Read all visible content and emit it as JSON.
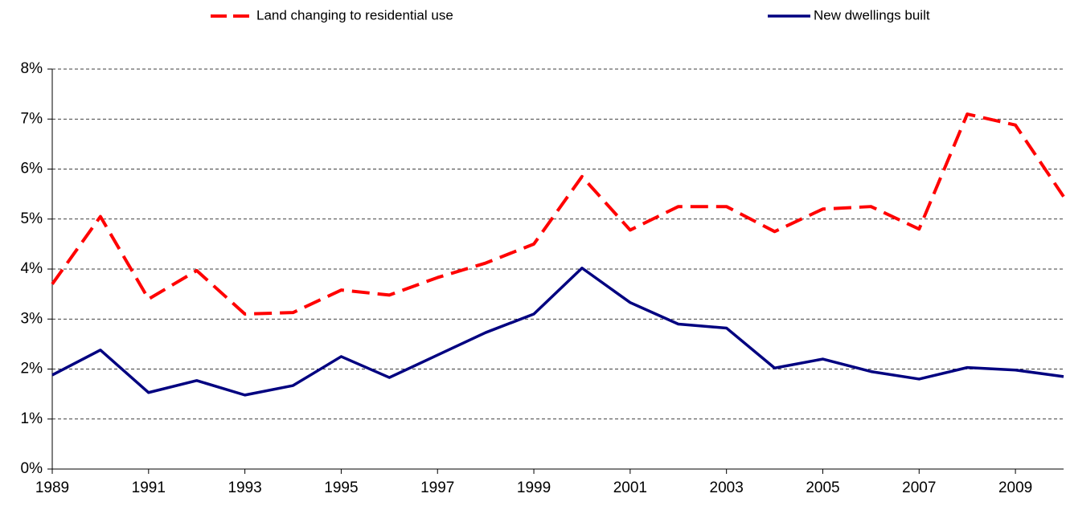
{
  "chart_data": {
    "type": "line",
    "x": [
      1989,
      1990,
      1991,
      1992,
      1993,
      1994,
      1995,
      1996,
      1997,
      1998,
      1999,
      2000,
      2001,
      2002,
      2003,
      2004,
      2005,
      2006,
      2007,
      2008,
      2009,
      2010
    ],
    "series": [
      {
        "name": "Land changing to residential use",
        "color": "#ff0000",
        "dash": true,
        "values": [
          3.7,
          5.05,
          3.4,
          3.97,
          3.1,
          3.13,
          3.58,
          3.48,
          3.83,
          4.12,
          4.5,
          5.85,
          4.78,
          5.25,
          5.25,
          4.75,
          5.2,
          5.25,
          4.8,
          7.1,
          6.88,
          5.45
        ]
      },
      {
        "name": "New dwellings built",
        "color": "#000080",
        "dash": false,
        "values": [
          1.88,
          2.38,
          1.53,
          1.77,
          1.48,
          1.67,
          2.25,
          1.83,
          2.28,
          2.73,
          3.1,
          4.02,
          3.33,
          2.9,
          2.82,
          2.02,
          2.2,
          1.95,
          1.8,
          2.03,
          1.98,
          1.85
        ]
      }
    ],
    "xlim": [
      1989,
      2010
    ],
    "xticks": [
      1989,
      1991,
      1993,
      1995,
      1997,
      1999,
      2001,
      2003,
      2005,
      2007,
      2009
    ],
    "ylim": [
      0,
      8
    ],
    "yticks": [
      {
        "value": 0,
        "label": "0%"
      },
      {
        "value": 1,
        "label": "1%"
      },
      {
        "value": 2,
        "label": "2%"
      },
      {
        "value": 3,
        "label": "3%"
      },
      {
        "value": 4,
        "label": "4%"
      },
      {
        "value": 5,
        "label": "5%"
      },
      {
        "value": 6,
        "label": "6%"
      },
      {
        "value": 7,
        "label": "7%"
      },
      {
        "value": 8,
        "label": "8%"
      }
    ],
    "grid": true,
    "legend": "top"
  }
}
